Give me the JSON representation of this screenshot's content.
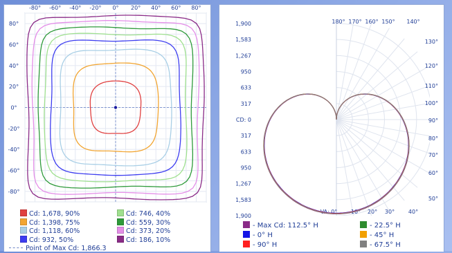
{
  "chart_data": [
    {
      "type": "isocandela",
      "x_ticks": [
        "-80°",
        "-60°",
        "-40°",
        "-20°",
        "0°",
        "20°",
        "40°",
        "60°",
        "80°"
      ],
      "y_ticks": [
        "80°",
        "60°",
        "40°",
        "20°",
        "0°",
        "-20°",
        "-40°",
        "-60°",
        "-80°"
      ],
      "xlim": [
        -90,
        90
      ],
      "ylim": [
        -90,
        90
      ],
      "grid": true,
      "contours": [
        {
          "label": "Cd: 1,678, 90%",
          "radius_deg": 25,
          "shape": 3,
          "color": "#e04040"
        },
        {
          "label": "Cd: 1,398, 75%",
          "radius_deg": 42,
          "shape": 4,
          "color": "#f2a531"
        },
        {
          "label": "Cd: 1,118, 60%",
          "radius_deg": 55,
          "shape": 5,
          "color": "#a9cfe6"
        },
        {
          "label": "Cd: 932, 50%",
          "radius_deg": 64,
          "shape": 6,
          "color": "#3c3cf0"
        },
        {
          "label": "Cd: 746, 40%",
          "radius_deg": 70,
          "shape": 7,
          "color": "#9fe08f"
        },
        {
          "label": "Cd: 559, 30%",
          "radius_deg": 76,
          "shape": 8,
          "color": "#2e9a3a"
        },
        {
          "label": "Cd: 373, 20%",
          "radius_deg": 82,
          "shape": 9,
          "color": "#e48ee8"
        },
        {
          "label": "Cd: 186, 10%",
          "radius_deg": 87,
          "shape": 10,
          "color": "#8a2b87"
        }
      ],
      "max_point": {
        "x": 0,
        "y": 0,
        "label": "Point of Max Cd: 1,866.3"
      }
    },
    {
      "type": "polar",
      "r_labels_top": [
        "1,900",
        "1,583",
        "1,267",
        "950",
        "633",
        "317"
      ],
      "center_label": "CD: 0",
      "r_labels_bottom": [
        "317",
        "633",
        "950",
        "1,267",
        "1,583",
        "1,900"
      ],
      "top_angles": [
        "180°",
        "170°",
        "160°",
        "150°",
        "140°"
      ],
      "right_angles": [
        "130°",
        "120°",
        "110°",
        "100°",
        "90°",
        "80°",
        "70°",
        "60°",
        "50°"
      ],
      "bottom_angles": [
        "VA: 0°",
        "10°",
        "20°",
        "30°",
        "40°"
      ],
      "r_max": 1900,
      "series": [
        {
          "name": "- Max Cd: 112.5° H",
          "color": "#8a2b87",
          "values_approx": "circle, peak 1866 at VA 0°"
        },
        {
          "name": "- 22.5° H",
          "color": "#2e8b2e",
          "values_approx": "circle, peak ~1860 at VA 0°"
        },
        {
          "name": "- 0° H",
          "color": "#1414e6",
          "values_approx": "circle, peak ~1850 at VA 0°"
        },
        {
          "name": "- 45° H",
          "color": "#f2a000",
          "values_approx": "circle, peak ~1860 at VA 0°"
        },
        {
          "name": "- 90° H",
          "color": "#ff2020",
          "values_approx": "circle, peak ~1855 at VA 0°"
        },
        {
          "name": "- 67.5° H",
          "color": "#808080",
          "values_approx": "circle, peak ~1860 at VA 0°"
        }
      ]
    }
  ]
}
